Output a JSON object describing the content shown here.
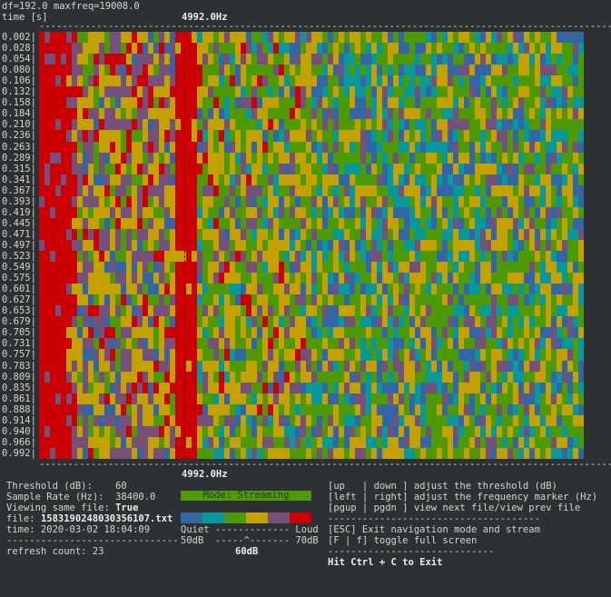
{
  "header": {
    "line1": "df=192.0 maxfreq=19008.0",
    "line2": "time [s]",
    "freq_marker": "4992.0Hz"
  },
  "chart_data": {
    "type": "heatmap",
    "ylabel": "time [s]",
    "y_ticks": [
      "0.002",
      "0.028",
      "0.054",
      "0.080",
      "0.106",
      "0.132",
      "0.158",
      "0.184",
      "0.210",
      "0.236",
      "0.263",
      "0.289",
      "0.315",
      "0.341",
      "0.367",
      "0.393",
      "0.419",
      "0.445",
      "0.471",
      "0.497",
      "0.523",
      "0.549",
      "0.575",
      "0.601",
      "0.627",
      "0.653",
      "0.679",
      "0.705",
      "0.731",
      "0.757",
      "0.783",
      "0.809",
      "0.835",
      "0.861",
      "0.888",
      "0.914",
      "0.940",
      "0.966",
      "0.992"
    ],
    "freq_marker_hz": 4992.0,
    "df": 192.0,
    "maxfreq": 19008.0,
    "colorscale": [
      "#3465a4",
      "#06989a",
      "#4e9a06",
      "#c4a000",
      "#75507b",
      "#cc0000"
    ],
    "scale_range_db": [
      50,
      70
    ],
    "threshold_db": 60
  },
  "status": {
    "threshold": "Threshold (dB):    60",
    "sample_rate": "Sample Rate (Hz):  38400.0",
    "same_file_label": "Viewing same file: ",
    "same_file_value": "True",
    "file_label": "file: ",
    "file_value": "1583190248030356107.txt",
    "time": "time: 2020-03-02 18:04:09",
    "sep": "------------------------------",
    "refresh": "refresh count: 23"
  },
  "legend": {
    "mode": "Mode: Streaming",
    "quiet_loud": "Quiet ------------- Loud",
    "db_line": "50dB  -----^------- 70dB",
    "current": "60dB"
  },
  "help": {
    "l1": "[up   | down ] adjust the threshold (dB)",
    "l2": "[left | right] adjust the frequency marker (Hz)",
    "l3": "[pgup | pgdn ] view next file/view prev file",
    "sep1": "-------------------------------------",
    "l4": "[ESC] Exit navigation mode and stream",
    "l5": "[F | f] toggle full screen",
    "sep2": "-----------------------------",
    "exit": "Hit Ctrl + C to Exit"
  }
}
